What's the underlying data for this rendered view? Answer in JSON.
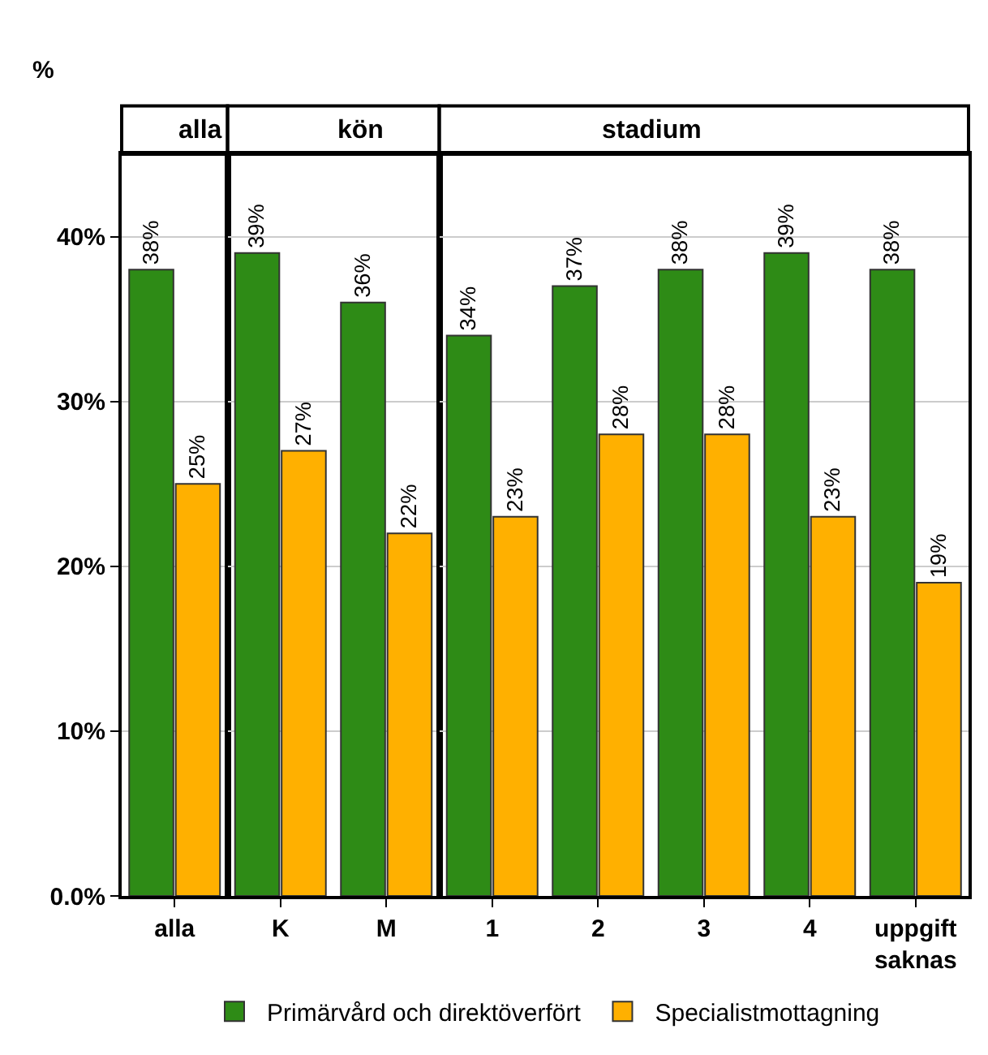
{
  "chart_data": [
    {
      "type": "bar",
      "title": "alla",
      "ylabel": "%",
      "categories": [
        "alla"
      ],
      "series": [
        {
          "name": "Primärvård och direktöverfört",
          "color": "#2e8b16",
          "values": [
            38
          ],
          "value_labels": [
            "38%"
          ]
        },
        {
          "name": "Specialistmottagning",
          "color": "#ffb000",
          "values": [
            25
          ],
          "value_labels": [
            "25%"
          ]
        }
      ],
      "ylim": [
        0,
        45
      ],
      "yticks": [
        {
          "value": 0,
          "label": "0.0%"
        },
        {
          "value": 10,
          "label": "10%"
        },
        {
          "value": 20,
          "label": "20%"
        },
        {
          "value": 30,
          "label": "30%"
        },
        {
          "value": 40,
          "label": "40%"
        }
      ],
      "grid": "y",
      "legend": "bottom"
    },
    {
      "type": "bar",
      "title": "kön",
      "categories": [
        "K",
        "M"
      ],
      "series": [
        {
          "color": "#2e8b16",
          "values": [
            39,
            36
          ],
          "value_labels": [
            "39%",
            "36%"
          ]
        },
        {
          "color": "#ffb000",
          "values": [
            27,
            22
          ],
          "value_labels": [
            "27%",
            "22%"
          ]
        }
      ],
      "ylim": [
        0,
        45
      ],
      "yticks": [
        0,
        10,
        20,
        30,
        40
      ],
      "grid": "y",
      "tick_labels": "x",
      "legend": false
    },
    {
      "type": "bar",
      "title": "stadium",
      "categories": [
        "1",
        "2",
        "3",
        "4",
        "uppgift\nsaknas"
      ],
      "series": [
        {
          "color": "#2e8b16",
          "values": [
            34,
            37,
            38,
            39,
            38
          ],
          "value_labels": [
            "34%",
            "37%",
            "38%",
            "39%",
            "38%"
          ]
        },
        {
          "color": "#ffb000",
          "values": [
            23,
            28,
            28,
            23,
            19
          ],
          "value_labels": [
            "23%",
            "28%",
            "28%",
            "23%",
            "19%"
          ]
        }
      ],
      "ylim": [
        0,
        45
      ],
      "yticks": [
        0,
        10,
        20,
        30,
        40
      ],
      "grid": "y",
      "tick_labels": "x",
      "legend": false
    }
  ]
}
